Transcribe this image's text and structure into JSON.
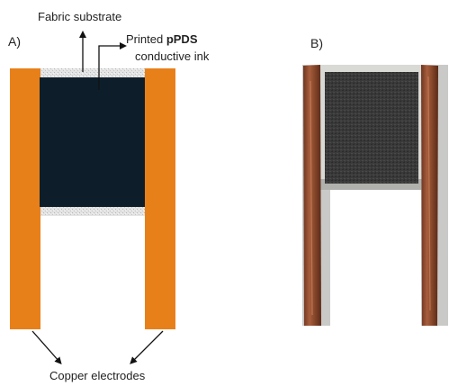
{
  "panel_a": {
    "label": "A)",
    "fabric_label": "Fabric substrate",
    "ink_label_prefix": "Printed ",
    "ink_label_bold": "pPDS",
    "ink_label_line2": "conductive ink",
    "electrodes_label": "Copper electrodes"
  },
  "panel_b": {
    "label": "B)"
  },
  "colors": {
    "copper": "#e8801a",
    "ink": "#0d1e2a",
    "fabric": "#d8d8d8",
    "photo_background": "#c9c9c7",
    "photo_copper": "#8a4a2c",
    "photo_fabric": "#393939"
  }
}
